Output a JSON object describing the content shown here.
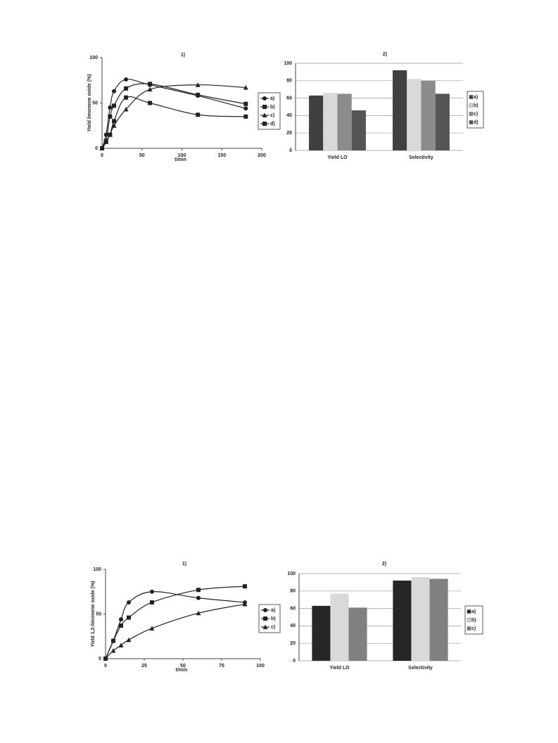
{
  "chart_data": [
    {
      "type": "line",
      "title": "1)",
      "x_label": "t/min",
      "y_label": "Yield limonene oxide (%)",
      "x": [
        0,
        5,
        10,
        15,
        30,
        60,
        120,
        180
      ],
      "series": [
        {
          "name": "a)",
          "color": "#222222",
          "marker": "circle",
          "values": [
            0,
            15,
            45,
            63,
            76,
            70,
            58,
            44
          ]
        },
        {
          "name": "b)",
          "color": "#222222",
          "marker": "square",
          "values": [
            0,
            8,
            35,
            47,
            66,
            71,
            59,
            49
          ]
        },
        {
          "name": "c)",
          "color": "#222222",
          "marker": "triangle",
          "values": [
            0,
            7,
            15,
            25,
            43,
            65,
            70,
            67
          ]
        },
        {
          "name": "d)",
          "color": "#222222",
          "marker": "square",
          "values": [
            0,
            8,
            15,
            30,
            56,
            50,
            37,
            35
          ]
        }
      ],
      "xlim": [
        0,
        200
      ],
      "xticks": [
        0,
        50,
        100,
        150,
        200
      ],
      "ylim": [
        0,
        100
      ],
      "yticks": [
        0,
        50,
        100
      ],
      "grid": false,
      "legend": "right"
    },
    {
      "type": "bar",
      "title": "2)",
      "categories": [
        "Yield LO",
        "Selectivity"
      ],
      "series": [
        {
          "name": "a)",
          "color": "#404040",
          "values": [
            63,
            92
          ]
        },
        {
          "name": "b)",
          "color": "#d9d9d9",
          "values": [
            66,
            82
          ]
        },
        {
          "name": "c)",
          "color": "#8c8c8c",
          "values": [
            65,
            80
          ]
        },
        {
          "name": "d)",
          "color": "#555555",
          "values": [
            46,
            65
          ]
        }
      ],
      "ylim": [
        0,
        100
      ],
      "yticks": [
        0,
        20,
        40,
        60,
        80,
        100
      ],
      "grid": true,
      "legend": "right"
    },
    {
      "type": "line",
      "title": "1)",
      "x_label": "t/min",
      "y_label": "Yield 1,2-limonene oxide (%)",
      "x": [
        0,
        5,
        10,
        15,
        30,
        60,
        90
      ],
      "series": [
        {
          "name": "a)",
          "color": "#222222",
          "marker": "circle",
          "values": [
            0,
            20,
            44,
            63,
            75,
            68,
            63
          ]
        },
        {
          "name": "b)",
          "color": "#222222",
          "marker": "square",
          "values": [
            0,
            20,
            37,
            46,
            63,
            77,
            81
          ]
        },
        {
          "name": "c)",
          "color": "#222222",
          "marker": "triangle",
          "values": [
            0,
            9,
            15,
            21,
            34,
            51,
            61
          ]
        }
      ],
      "xlim": [
        0,
        100
      ],
      "xticks": [
        0,
        25,
        50,
        75,
        100
      ],
      "ylim": [
        0,
        100
      ],
      "yticks": [
        0,
        50,
        100
      ],
      "grid": false,
      "legend": "right"
    },
    {
      "type": "bar",
      "title": "2)",
      "categories": [
        "Yield LO",
        "Selectivity"
      ],
      "series": [
        {
          "name": "a)",
          "color": "#262626",
          "values": [
            63,
            92
          ]
        },
        {
          "name": "b)",
          "color": "#d9d9d9",
          "values": [
            77,
            96
          ]
        },
        {
          "name": "c)",
          "color": "#808080",
          "values": [
            61,
            94
          ]
        }
      ],
      "ylim": [
        0,
        100
      ],
      "yticks": [
        0,
        20,
        40,
        60,
        80,
        100
      ],
      "grid": true,
      "legend": "right"
    }
  ]
}
